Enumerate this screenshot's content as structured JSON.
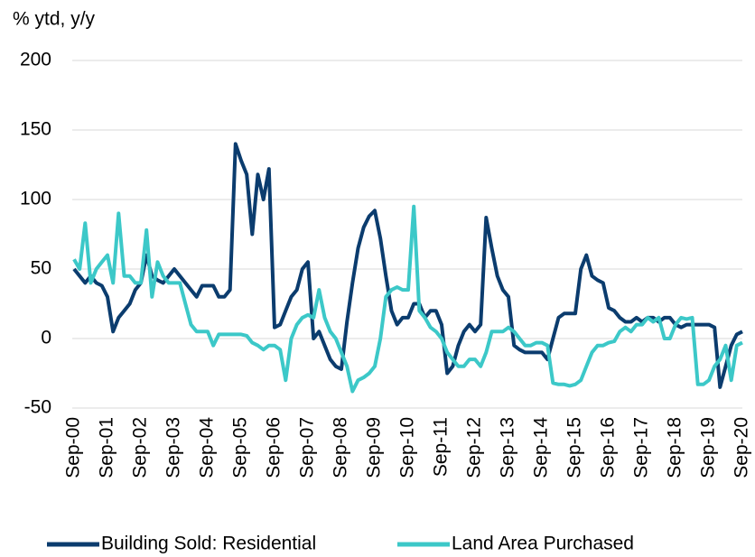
{
  "chart_data": {
    "type": "line",
    "y_label": "% ytd, y/y",
    "ylim": [
      -50,
      200
    ],
    "yticks": [
      -50,
      0,
      50,
      100,
      150,
      200
    ],
    "grid": true,
    "legend": "bottom",
    "categories": [
      "Sep-00",
      null,
      null,
      null,
      null,
      null,
      "Sep-01",
      null,
      null,
      null,
      null,
      null,
      "Sep-02",
      null,
      null,
      null,
      null,
      null,
      "Sep-03",
      null,
      null,
      null,
      null,
      null,
      "Sep-04",
      null,
      null,
      null,
      null,
      null,
      "Sep-05",
      null,
      null,
      null,
      null,
      null,
      "Sep-06",
      null,
      null,
      null,
      null,
      null,
      "Sep-07",
      null,
      null,
      null,
      null,
      null,
      "Sep-08",
      null,
      null,
      null,
      null,
      null,
      "Sep-09",
      null,
      null,
      null,
      null,
      null,
      "Sep-10",
      null,
      null,
      null,
      null,
      null,
      "Sep-11",
      null,
      null,
      null,
      null,
      null,
      "Sep-12",
      null,
      null,
      null,
      null,
      null,
      "Sep-13",
      null,
      null,
      null,
      null,
      null,
      "Sep-14",
      null,
      null,
      null,
      null,
      null,
      "Sep-15",
      null,
      null,
      null,
      null,
      null,
      "Sep-16",
      null,
      null,
      null,
      null,
      null,
      "Sep-17",
      null,
      null,
      null,
      null,
      null,
      "Sep-18",
      null,
      null,
      null,
      null,
      null,
      "Sep-19",
      null,
      null,
      null,
      null,
      null,
      "Sep-20"
    ],
    "series": [
      {
        "name": "Building Sold: Residential",
        "color": "#0b3c6e",
        "values": [
          50,
          45,
          40,
          45,
          40,
          38,
          30,
          5,
          15,
          20,
          25,
          35,
          40,
          60,
          45,
          42,
          40,
          45,
          50,
          45,
          40,
          35,
          30,
          38,
          38,
          38,
          30,
          30,
          35,
          140,
          128,
          118,
          75,
          118,
          100,
          122,
          8,
          10,
          20,
          30,
          35,
          50,
          55,
          0,
          5,
          -5,
          -15,
          -20,
          -22,
          12,
          40,
          65,
          80,
          88,
          92,
          72,
          45,
          20,
          10,
          15,
          15,
          25,
          25,
          15,
          20,
          20,
          10,
          -25,
          -20,
          -5,
          5,
          10,
          5,
          10,
          87,
          65,
          45,
          35,
          30,
          -5,
          -8,
          -10,
          -10,
          -10,
          -10,
          -15,
          0,
          15,
          18,
          18,
          18,
          50,
          60,
          45,
          42,
          40,
          22,
          20,
          15,
          12,
          12,
          15,
          12,
          15,
          15,
          12,
          15,
          15,
          10,
          8,
          10,
          10,
          10,
          10,
          10,
          8,
          -35,
          -20,
          -5,
          3,
          5
        ]
      },
      {
        "name": "Land Area Purchased",
        "color": "#3cc8c8",
        "values": [
          57,
          50,
          83,
          40,
          50,
          55,
          60,
          40,
          90,
          45,
          45,
          40,
          40,
          78,
          30,
          55,
          45,
          40,
          40,
          40,
          25,
          10,
          5,
          5,
          5,
          -5,
          3,
          3,
          3,
          3,
          3,
          2,
          -3,
          -5,
          -8,
          -5,
          -5,
          -8,
          -30,
          0,
          10,
          15,
          17,
          15,
          35,
          15,
          5,
          0,
          -10,
          -20,
          -38,
          -30,
          -28,
          -25,
          -20,
          0,
          30,
          35,
          37,
          35,
          35,
          95,
          20,
          15,
          8,
          5,
          0,
          -10,
          -15,
          -20,
          -20,
          -15,
          -15,
          -20,
          -10,
          5,
          5,
          5,
          8,
          5,
          0,
          -5,
          -5,
          -3,
          -3,
          -5,
          -32,
          -33,
          -33,
          -34,
          -33,
          -30,
          -20,
          -10,
          -5,
          -5,
          -3,
          -2,
          5,
          8,
          5,
          10,
          10,
          15,
          12,
          15,
          0,
          0,
          10,
          15,
          14,
          15,
          -33,
          -33,
          -30,
          -20,
          -15,
          -5,
          -30,
          -5,
          -3
        ]
      }
    ]
  }
}
